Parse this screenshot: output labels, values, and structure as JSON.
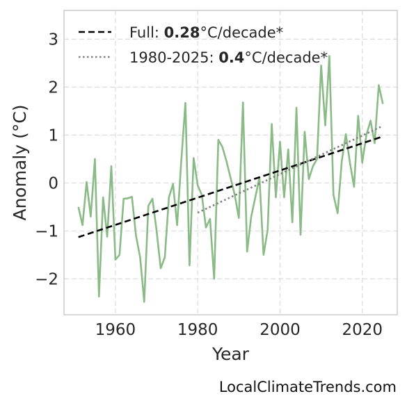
{
  "watermark": "LocalClimateTrends.com",
  "colors": {
    "series": "#8aba86",
    "full_trend": "#000000",
    "recent_trend": "#808080",
    "grid": "#dcdcdc",
    "frame": "#cccccc",
    "text": "#262626"
  },
  "legend": {
    "placement": "top-left",
    "full": {
      "prefix": "Full: ",
      "value": "0.28",
      "suffix": "°C/decade*"
    },
    "recent": {
      "prefix": "1980-2025: ",
      "value": "0.4",
      "suffix": "°C/decade*"
    }
  },
  "chart_data": {
    "type": "line",
    "title": "",
    "xlabel": "Year",
    "ylabel": "Anomaly (°C)",
    "xlim": [
      1947.5,
      2028.5
    ],
    "ylim": [
      -2.75,
      3.6
    ],
    "x_ticks": [
      1960,
      1980,
      2000,
      2020
    ],
    "y_ticks": [
      -2,
      -1,
      0,
      1,
      2,
      3
    ],
    "y_tick_labels": [
      "−2",
      "−1",
      "0",
      "1",
      "2",
      "3"
    ],
    "grid": true,
    "series": [
      {
        "type": "line",
        "x": [
          1951,
          1952,
          1953,
          1954,
          1955,
          1956,
          1957,
          1958,
          1959,
          1960,
          1961,
          1962,
          1963,
          1964,
          1965,
          1966,
          1967,
          1968,
          1969,
          1970,
          1971,
          1972,
          1973,
          1974,
          1975,
          1976,
          1977,
          1978,
          1979,
          1980,
          1981,
          1982,
          1983,
          1984,
          1985,
          1986,
          1987,
          1988,
          1989,
          1990,
          1991,
          1992,
          1993,
          1994,
          1995,
          1996,
          1997,
          1998,
          1999,
          2000,
          2001,
          2002,
          2003,
          2004,
          2005,
          2006,
          2007,
          2008,
          2009,
          2010,
          2011,
          2012,
          2013,
          2014,
          2015,
          2016,
          2017,
          2018,
          2019,
          2020,
          2021,
          2022,
          2023,
          2024,
          2025
        ],
        "y": [
          -0.5,
          -0.88,
          0.02,
          -0.7,
          0.5,
          -2.37,
          -0.3,
          -1.12,
          0.35,
          -1.6,
          -1.5,
          -0.33,
          -0.32,
          -0.29,
          -1.1,
          -1.55,
          -2.48,
          -0.48,
          -0.33,
          -1.0,
          -1.78,
          -1.55,
          -0.3,
          -0.02,
          -0.88,
          0.45,
          1.67,
          -1.72,
          0.52,
          -0.05,
          -0.25,
          -0.93,
          -0.75,
          -2.0,
          0.9,
          0.75,
          0.45,
          0.1,
          -0.25,
          -0.73,
          1.68,
          -1.43,
          -0.7,
          -0.3,
          0.12,
          -1.5,
          -0.98,
          1.23,
          -0.3,
          0.86,
          -0.3,
          0.7,
          -0.82,
          1.57,
          -1.08,
          1.07,
          0.08,
          0.35,
          0.5,
          2.45,
          1.2,
          2.65,
          -0.25,
          -0.63,
          0.45,
          1.02,
          0.42,
          -0.08,
          1.4,
          0.42,
          1.0,
          1.3,
          0.83,
          2.04,
          1.65
        ]
      },
      {
        "type": "trend",
        "style": "dashed",
        "x": [
          1951,
          2025
        ],
        "y": [
          -1.13,
          0.97
        ]
      },
      {
        "type": "trend",
        "style": "dotted",
        "x": [
          1980,
          2025
        ],
        "y": [
          -0.62,
          1.19
        ]
      }
    ]
  }
}
